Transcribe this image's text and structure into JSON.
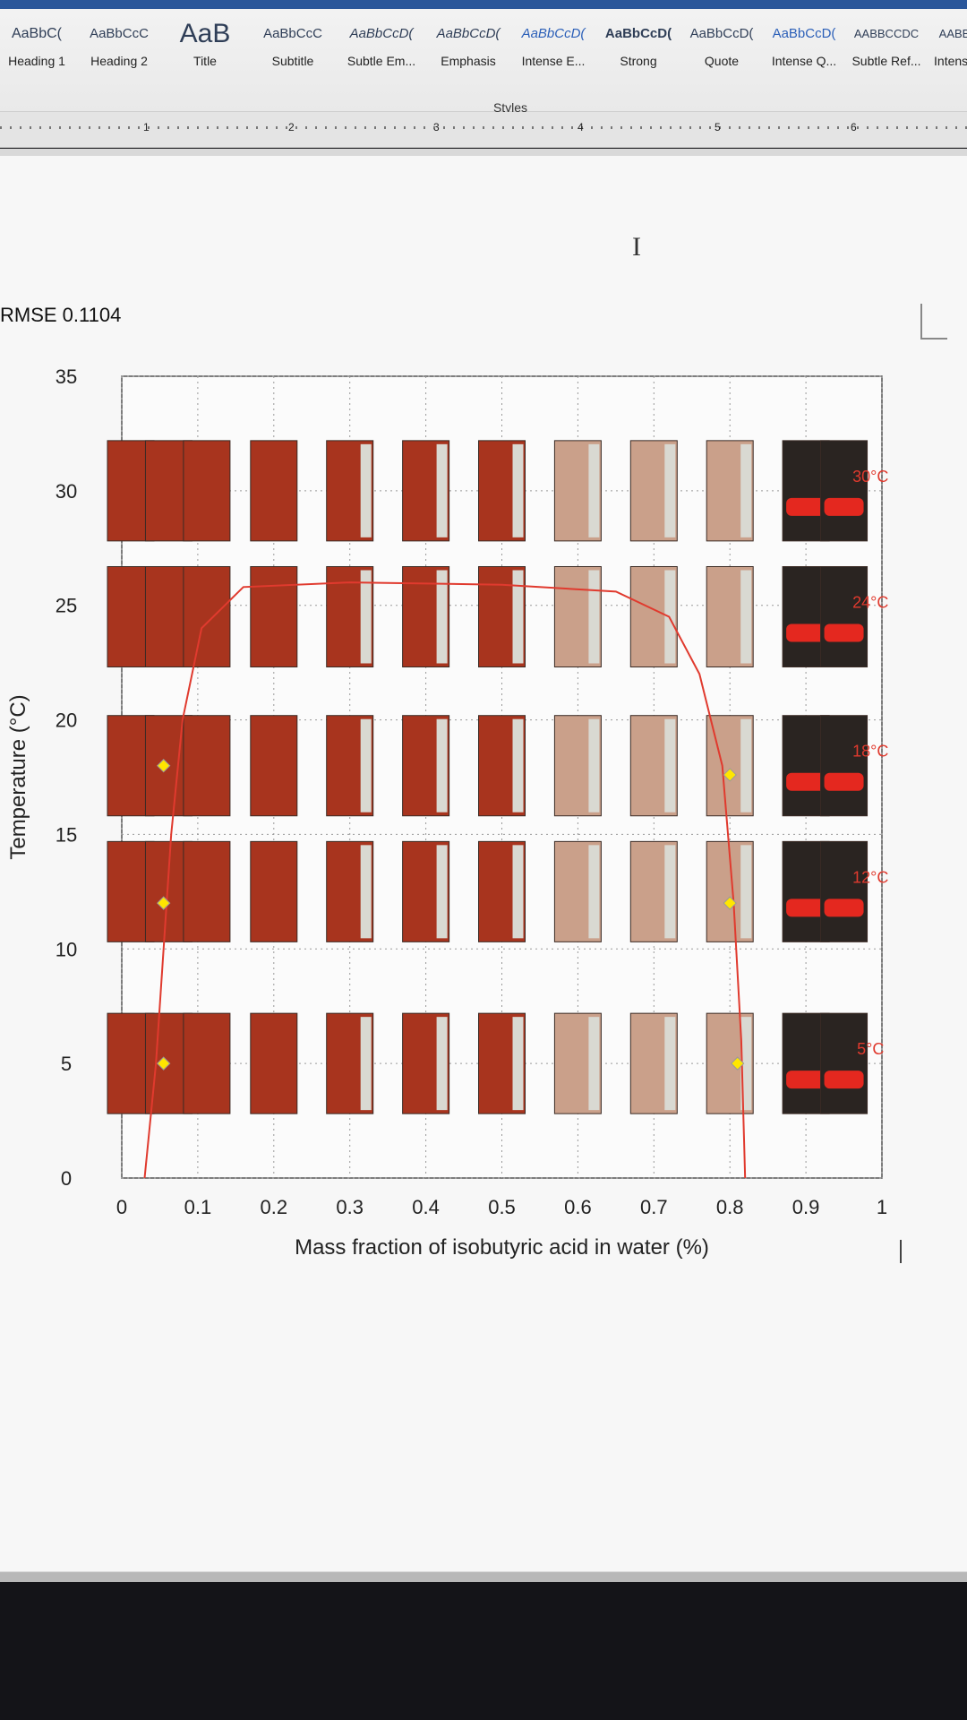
{
  "ribbon": {
    "styles": [
      {
        "preview": "AaBbC(",
        "name": "Heading 1"
      },
      {
        "preview": "AaBbCcC",
        "name": "Heading 2"
      },
      {
        "preview": "AaB",
        "name": "Title"
      },
      {
        "preview": "AaBbCcC",
        "name": "Subtitle"
      },
      {
        "preview": "AaBbCcD(",
        "name": "Subtle Em..."
      },
      {
        "preview": "AaBbCcD(",
        "name": "Emphasis"
      },
      {
        "preview": "AaBbCcD(",
        "name": "Intense E..."
      },
      {
        "preview": "AaBbCcD(",
        "name": "Strong"
      },
      {
        "preview": "AaBbCcD(",
        "name": "Quote"
      },
      {
        "preview": "AaBbCcD(",
        "name": "Intense Q..."
      },
      {
        "preview": "AABBCCDC",
        "name": "Subtle Ref..."
      },
      {
        "preview": "AABB",
        "name": "Intense"
      }
    ],
    "group_label": "Styles"
  },
  "ruler": {
    "numbers": [
      "1",
      "2",
      "3",
      "4",
      "5",
      "6"
    ]
  },
  "document": {
    "rmse_text": "RMSE 0.1104"
  },
  "chart_data": {
    "type": "scatter",
    "xlabel": "Mass fraction of isobutyric acid in water (%)",
    "ylabel": "Temperature (°C)",
    "xlim": [
      0,
      1
    ],
    "ylim": [
      0,
      35
    ],
    "x_ticks": [
      "0",
      "0.1",
      "0.2",
      "0.3",
      "0.4",
      "0.5",
      "0.6",
      "0.7",
      "0.8",
      "0.9",
      "1"
    ],
    "y_ticks": [
      "0",
      "5",
      "10",
      "15",
      "20",
      "25",
      "30",
      "35"
    ],
    "grid": true,
    "temperature_labels": [
      "30°C",
      "24°C",
      "18°C",
      "12°C",
      "5°C"
    ],
    "series": [
      {
        "type": "scatter",
        "color": "#ffe600",
        "points": [
          [
            0.055,
            18
          ],
          [
            0.055,
            12
          ],
          [
            0.055,
            5
          ],
          [
            0.8,
            17.6
          ],
          [
            0.8,
            12
          ],
          [
            0.81,
            5
          ]
        ]
      },
      {
        "type": "line",
        "color": "#e03a2e",
        "points": [
          [
            0.03,
            0
          ],
          [
            0.045,
            5
          ],
          [
            0.055,
            10
          ],
          [
            0.065,
            15
          ],
          [
            0.08,
            20
          ],
          [
            0.105,
            24
          ],
          [
            0.16,
            25.8
          ],
          [
            0.3,
            26
          ],
          [
            0.5,
            25.9
          ],
          [
            0.65,
            25.6
          ],
          [
            0.72,
            24.5
          ],
          [
            0.76,
            22
          ],
          [
            0.79,
            18
          ],
          [
            0.805,
            12
          ],
          [
            0.815,
            6
          ],
          [
            0.82,
            0
          ]
        ]
      }
    ],
    "photo_rows": [
      {
        "temp": 30,
        "x": [
          0.0,
          0.05,
          0.1,
          0.2,
          0.3,
          0.4,
          0.5,
          0.6,
          0.7,
          0.8,
          0.9,
          0.95
        ]
      },
      {
        "temp": 24.5,
        "x": [
          0.0,
          0.05,
          0.1,
          0.2,
          0.3,
          0.4,
          0.5,
          0.6,
          0.7,
          0.8,
          0.9,
          0.95
        ]
      },
      {
        "temp": 18,
        "x": [
          0.0,
          0.05,
          0.1,
          0.2,
          0.3,
          0.4,
          0.5,
          0.6,
          0.7,
          0.8,
          0.9,
          0.95
        ]
      },
      {
        "temp": 12.5,
        "x": [
          0.0,
          0.05,
          0.1,
          0.2,
          0.3,
          0.4,
          0.5,
          0.6,
          0.7,
          0.8,
          0.9,
          0.95
        ]
      },
      {
        "temp": 5,
        "x": [
          0.0,
          0.05,
          0.1,
          0.2,
          0.3,
          0.4,
          0.5,
          0.6,
          0.7,
          0.8,
          0.9,
          0.95
        ]
      }
    ]
  }
}
